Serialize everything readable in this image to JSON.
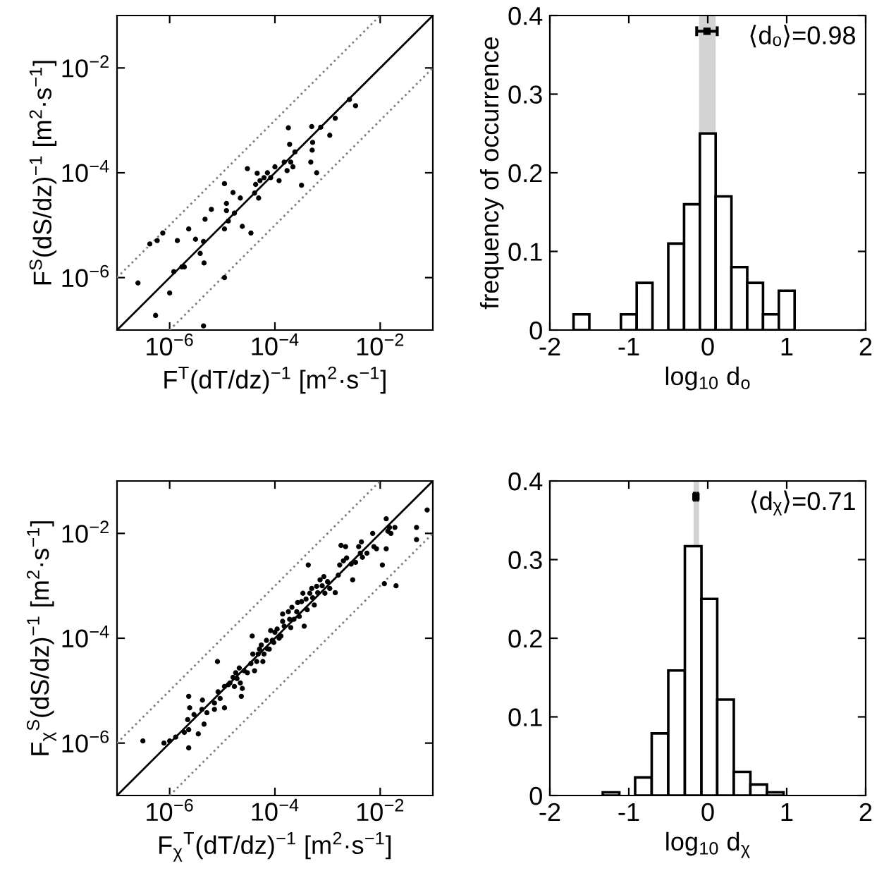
{
  "chart_data": [
    {
      "type": "scatter",
      "xlabel": "F$^{T}$(dT/dz)$^{−1}$ [m$^{2}$·s$^{−1}$]",
      "ylabel": "F$^{S}$(dS/dz)$^{−1}$ [m$^{2}$·s$^{−1}$]",
      "log": "xy",
      "xlim": [
        1e-07,
        0.1
      ],
      "ylim": [
        1e-07,
        0.1
      ],
      "xticks": [
        {
          "value": 1e-06,
          "label": "10$^{−6}$"
        },
        {
          "value": 0.0001,
          "label": "10$^{−4}$"
        },
        {
          "value": 0.01,
          "label": "10$^{−2}$"
        }
      ],
      "yticks": [
        {
          "value": 1e-06,
          "label": "10$^{−6}$"
        },
        {
          "value": 0.0001,
          "label": "10$^{−4}$"
        },
        {
          "value": 0.01,
          "label": "10$^{−2}$"
        }
      ],
      "grid": false,
      "series": [
        {
          "type": "line",
          "line_style": "dotted",
          "color": "#808080",
          "x": [
            1e-07,
            0.01
          ],
          "values": [
            1e-06,
            0.1
          ]
        },
        {
          "type": "line",
          "line_style": "dotted",
          "color": "#808080",
          "x": [
            1e-06,
            0.1
          ],
          "values": [
            1e-07,
            0.01
          ]
        },
        {
          "type": "line",
          "line_style": "solid",
          "color": "#000000",
          "x": [
            1e-07,
            0.1
          ],
          "values": [
            1e-07,
            0.1
          ]
        },
        {
          "type": "scatter",
          "marker": "circle",
          "color": "#000000",
          "x": [
            2.5e-07,
            4.2e-07,
            5.8e-07,
            7.4e-07,
            5.4e-07,
            1e-06,
            1.2e-06,
            1.4e-06,
            1.7e-06,
            1.9e-06,
            2.3e-06,
            3.1e-06,
            3.8e-06,
            4.4e-06,
            4.5e-06,
            4.7e-06,
            4.4e-06,
            6.2e-06,
            1.1e-05,
            1.1e-05,
            1.1e-05,
            1.2e-05,
            1.2e-05,
            1.3e-05,
            1.7e-05,
            1.6e-05,
            2.2e-05,
            2.4e-05,
            3e-05,
            3.5e-05,
            4.1e-05,
            4.3e-05,
            4.6e-05,
            4.9e-05,
            5.2e-05,
            6.2e-05,
            7.2e-05,
            8.3e-05,
            0.0001,
            0.00012,
            0.00015,
            0.00017,
            0.00018,
            0.00019,
            0.0002,
            0.00022,
            0.00024,
            0.00032,
            0.00048,
            0.0005,
            0.00052,
            0.00051,
            0.00062,
            0.00074,
            0.0011,
            0.0014,
            0.0026,
            0.0034
          ],
          "values": [
            7.9e-07,
            4.4e-06,
            5.1e-06,
            7.1e-06,
            1.9e-07,
            5.1e-07,
            1.3e-06,
            5.1e-06,
            1.6e-06,
            1.6e-06,
            8.5e-06,
            5.4e-06,
            2.9e-06,
            4.9e-06,
            1.9e-06,
            1.3e-05,
            1.2e-07,
            2e-05,
            1e-06,
            8.5e-06,
            6.2e-05,
            2.6e-05,
            1.9e-05,
            1.2e-05,
            1.7e-05,
            4.2e-05,
            3.3e-05,
            9.5e-06,
            0.00012,
            7.1e-06,
            4.1e-05,
            6e-05,
            9.8e-05,
            3.3e-05,
            7.1e-05,
            8.1e-05,
            0.0001,
            8.1e-05,
            0.00013,
            7.1e-05,
            0.00016,
            0.00011,
            0.00072,
            0.00035,
            0.00016,
            0.00013,
            0.00025,
            5.8e-05,
            0.00016,
            0.00076,
            0.00038,
            0.00027,
            0.0001,
            0.00074,
            0.00052,
            0.0011,
            0.0025,
            0.0019
          ]
        }
      ]
    },
    {
      "type": "histogram",
      "xlabel": "log$_{10}$ d$_{o}$",
      "ylabel": "frequency of occurrence",
      "annotations": [
        "⟨dₒ⟩=0.98"
      ],
      "xlim": [
        -2,
        2
      ],
      "ylim": [
        0,
        0.4
      ],
      "xticks": [
        -2,
        -1,
        0,
        1,
        2
      ],
      "yticks": [
        0,
        0.1,
        0.2,
        0.3,
        0.4
      ],
      "grid": false,
      "color": "#ffffff",
      "bins": [
        -1.7,
        -1.5,
        -1.3,
        -1.1,
        -0.9,
        -0.7,
        -0.5,
        -0.3,
        -0.1,
        0.1,
        0.3,
        0.5,
        0.7,
        0.9,
        1.1
      ],
      "values": [
        0.02,
        0,
        0,
        0.02,
        0.06,
        0,
        0.11,
        0.16,
        0.25,
        0.17,
        0.08,
        0.06,
        0.02,
        0.05
      ],
      "bands": [
        {
          "axis": "x",
          "from": -0.11,
          "to": 0.1,
          "color": "#d3d3d3"
        }
      ],
      "series": [
        {
          "type": "scatter",
          "marker": "square",
          "color": "#000000",
          "x": [
            -0.01
          ],
          "values": [
            0.38
          ],
          "xerrors": [
            0.13
          ]
        }
      ]
    },
    {
      "type": "scatter",
      "xlabel": "F$_{χ}$$^{T}$(dT/dz)$^{−1}$ [m$^{2}$·s$^{−1}$]",
      "ylabel": "F$_{χ}$$^{S}$(dS/dz)$^{−1}$ [m$^{2}$·s$^{−1}$]",
      "log": "xy",
      "xlim": [
        1e-07,
        0.1
      ],
      "ylim": [
        1e-07,
        0.1
      ],
      "xticks": [
        {
          "value": 1e-06,
          "label": "10$^{−6}$"
        },
        {
          "value": 0.0001,
          "label": "10$^{−4}$"
        },
        {
          "value": 0.01,
          "label": "10$^{−2}$"
        }
      ],
      "yticks": [
        {
          "value": 1e-06,
          "label": "10$^{−6}$"
        },
        {
          "value": 0.0001,
          "label": "10$^{−4}$"
        },
        {
          "value": 0.01,
          "label": "10$^{−2}$"
        }
      ],
      "grid": false,
      "series": [
        {
          "type": "line",
          "line_style": "dotted",
          "color": "#808080",
          "x": [
            1e-07,
            0.01
          ],
          "values": [
            1e-06,
            0.1
          ]
        },
        {
          "type": "line",
          "line_style": "dotted",
          "color": "#808080",
          "x": [
            1e-06,
            0.1
          ],
          "values": [
            1e-07,
            0.01
          ]
        },
        {
          "type": "line",
          "line_style": "solid",
          "color": "#000000",
          "x": [
            1e-07,
            0.1
          ],
          "values": [
            1e-07,
            0.1
          ]
        },
        {
          "type": "scatter",
          "marker": "circle",
          "color": "#000000",
          "x": [
            3.1e-07,
            7.8e-07,
            1e-06,
            1.3e-06,
            1.9e-06,
            2.3e-06,
            2.3e-06,
            2.2e-06,
            2.4e-06,
            2.3e-06,
            2.9e-06,
            3.5e-06,
            4.1e-06,
            4.2e-06,
            4.5e-06,
            5.1e-06,
            7.1e-06,
            7.1e-06,
            8.1e-06,
            8.3e-06,
            9.1e-06,
            1.1e-05,
            1.1e-05,
            1.3e-05,
            1.4e-05,
            1.6e-05,
            1.7e-05,
            1.8e-05,
            1.9e-05,
            2.1e-05,
            2.2e-05,
            2.3e-05,
            2.4e-05,
            2.6e-05,
            3e-05,
            3.5e-05,
            3.7e-05,
            3.8e-05,
            4.1e-05,
            4.5e-05,
            4.8e-05,
            5.1e-05,
            5.5e-05,
            5.9e-05,
            6.2e-05,
            6.9e-05,
            7.2e-05,
            7.8e-05,
            8.3e-05,
            8.9e-05,
            9.5e-05,
            0.0001,
            0.00011,
            0.00012,
            0.00013,
            0.00014,
            0.00014,
            0.00015,
            0.00018,
            0.00019,
            0.0002,
            0.00021,
            0.00023,
            0.00026,
            0.00027,
            0.00029,
            0.00032,
            0.00034,
            0.00036,
            0.00039,
            0.00041,
            0.00043,
            0.00046,
            0.0005,
            0.00052,
            0.00056,
            0.00062,
            0.00065,
            0.00072,
            0.00079,
            0.00085,
            0.00089,
            0.001,
            0.0011,
            0.0014,
            0.0016,
            0.0017,
            0.0018,
            0.002,
            0.0022,
            0.0023,
            0.0028,
            0.003,
            0.0034,
            0.0039,
            0.0042,
            0.0044,
            0.0046,
            0.0056,
            0.0072,
            0.0076,
            0.0085,
            0.011,
            0.012,
            0.013,
            0.013,
            0.014,
            0.015,
            0.016,
            0.019,
            0.02,
            0.049,
            0.049,
            0.078
          ],
          "values": [
            1.1e-06,
            1e-06,
            1.1e-06,
            1.3e-06,
            1.6e-06,
            8.1e-07,
            1.8e-06,
            2.8e-06,
            4.7e-06,
            7.8e-06,
            3.5e-06,
            1.5e-06,
            4.4e-06,
            6.6e-06,
            2.3e-06,
            3.8e-06,
            4.4e-06,
            5.8e-06,
            3.6e-05,
            9.5e-06,
            7.1e-06,
            4.7e-06,
            1.2e-05,
            1.3e-05,
            1.4e-05,
            1.8e-05,
            1.2e-05,
            2.2e-05,
            1.7e-05,
            2.7e-05,
            1.4e-05,
            7.8e-06,
            1.1e-05,
            2.4e-05,
            2.2e-05,
            3.3e-05,
            0.00011,
            5e-05,
            2.4e-05,
            3.6e-05,
            5e-05,
            6.2e-05,
            7.4e-05,
            3.6e-05,
            5e-05,
            9.1e-05,
            6.3e-05,
            6.2e-05,
            0.00014,
            9.1e-05,
            8.3e-05,
            0.00013,
            0.00015,
            0.0001,
            0.00011,
            0.00021,
            0.00029,
            0.00017,
            0.00032,
            0.00023,
            0.00016,
            0.00039,
            0.00023,
            0.00032,
            0.00048,
            0.00026,
            0.0005,
            0.00072,
            0.00017,
            0.00056,
            0.00035,
            0.0025,
            0.00072,
            0.00089,
            0.00059,
            0.00043,
            0.00098,
            0.00074,
            0.0013,
            0.001,
            0.0015,
            0.00072,
            0.0012,
            0.00089,
            0.00074,
            0.0016,
            0.0025,
            0.0059,
            0.003,
            0.0056,
            0.0034,
            0.0026,
            0.0013,
            0.0028,
            0.0056,
            0.0042,
            0.0069,
            0.0035,
            0.0042,
            0.01,
            0.0056,
            0.0051,
            0.0025,
            0.0011,
            0.019,
            0.0051,
            0.011,
            0.013,
            0.01,
            0.013,
            0.001,
            0.013,
            0.0076,
            0.028
          ]
        }
      ]
    },
    {
      "type": "histogram",
      "xlabel": "log$_{10}$ d$_{χ}$",
      "annotations": [
        "⟨dᵪ⟩=0.71"
      ],
      "xlim": [
        -2,
        2
      ],
      "ylim": [
        0,
        0.4
      ],
      "xticks": [
        -2,
        -1,
        0,
        1,
        2
      ],
      "yticks": [
        0,
        0.1,
        0.2,
        0.3,
        0.4
      ],
      "grid": false,
      "color": "#ffffff",
      "bins": [
        -1.33,
        -1.12,
        -0.92,
        -0.71,
        -0.5,
        -0.29,
        -0.08,
        0.12,
        0.33,
        0.54,
        0.75,
        0.96
      ],
      "values": [
        0.004,
        0,
        0.023,
        0.079,
        0.159,
        0.317,
        0.25,
        0.122,
        0.03,
        0.014,
        0.004
      ],
      "bands": [
        {
          "axis": "x",
          "from": -0.18,
          "to": -0.11,
          "color": "#d3d3d3"
        }
      ],
      "series": [
        {
          "type": "scatter",
          "marker": "square",
          "color": "#000000",
          "x": [
            -0.15
          ],
          "values": [
            0.38
          ],
          "xerrors": [
            0.02
          ]
        }
      ]
    }
  ]
}
